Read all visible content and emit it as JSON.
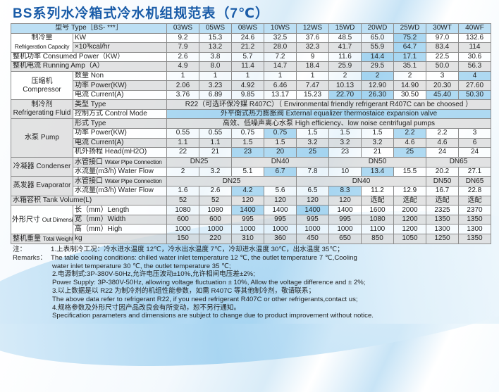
{
  "title": "BS系列水冷箱式冷水机组规范表（7℃）",
  "header": {
    "label": "型号 Type［BS- ***］",
    "models": [
      "03WS",
      "05WS",
      "08WS",
      "10WS",
      "12WS",
      "15WD",
      "20WD",
      "25WD",
      "30WT",
      "40WF"
    ]
  },
  "groups": {
    "capacity": "制冷量",
    "capacity_en": "Refrigeration Capacity",
    "compressor": "压缩机",
    "compressor_en": "Compressor",
    "fluid": "制冷剂",
    "fluid_en": "Refrigerating Fluid",
    "pump": "水泵 Pump",
    "condenser": "冷凝器 Condenser",
    "evaporator": "蒸发器 Evaporator",
    "dimension": "外形尺寸",
    "dimension_en": "Out Dimension",
    "weight": "整机重量",
    "weight_en": "Total Weight"
  },
  "rows": {
    "cap_kw": {
      "label": "KW",
      "values": [
        "9.2",
        "15.3",
        "24.6",
        "32.5",
        "37.6",
        "48.5",
        "65.0",
        "75.2",
        "97.0",
        "132.6"
      ]
    },
    "cap_kcal": {
      "label": "×10³kcal/hr",
      "values": [
        "7.9",
        "13.2",
        "21.2",
        "28.0",
        "32.3",
        "41.7",
        "55.9",
        "64.7",
        "83.4",
        "114"
      ]
    },
    "power": {
      "label": "整机功率 Consumed Power（KW）",
      "values": [
        "2.6",
        "3.8",
        "5.7",
        "7.2",
        "9",
        "11.6",
        "14.4",
        "17.1",
        "22.5",
        "30.6"
      ]
    },
    "amp": {
      "label": "整机电流 Running Amp（A）",
      "values": [
        "4.9",
        "8.0",
        "11.4",
        "14.7",
        "18.4",
        "25.9",
        "29.5",
        "35.1",
        "50.0",
        "56.3"
      ]
    },
    "comp_num": {
      "label": "数量 Non",
      "values": [
        "1",
        "1",
        "1",
        "1",
        "1",
        "2",
        "2",
        "2",
        "3",
        "4"
      ]
    },
    "comp_power": {
      "label": "功率 Power(KW)",
      "values": [
        "2.06",
        "3.23",
        "4.92",
        "6.46",
        "7.47",
        "10.13",
        "12.90",
        "14.90",
        "20.30",
        "27.60"
      ]
    },
    "comp_current": {
      "label": "电流 Current(A)",
      "values": [
        "3.76",
        "6.89",
        "9.85",
        "13.17",
        "15.23",
        "22.70",
        "26.30",
        "30.50",
        "45.40",
        "50.30"
      ]
    },
    "fluid_type": {
      "label": "类型 Type",
      "values": [
        "R22（可选环保冷媒 R407C）（ Environmental friendly refrigerant R407C can be choosed ）"
      ]
    },
    "control": {
      "label": "控制方式 Control Mode",
      "values": [
        "外平衡式热力膨胀阀 External equalizer thermostaice expansion valve"
      ]
    },
    "pump_type": {
      "label": "形式 Type",
      "values": [
        "高效、低噪声离心水泵 High efficiency、low noise centrifugal pumps"
      ]
    },
    "pump_power": {
      "label": "功率 Power(KW)",
      "values": [
        "0.55",
        "0.55",
        "0.75",
        "0.75",
        "1.5",
        "1.5",
        "1.5",
        "2.2",
        "2.2",
        "3"
      ]
    },
    "pump_current": {
      "label": "电流 Current(A)",
      "values": [
        "1.1",
        "1.1",
        "1.5",
        "1.5",
        "3.2",
        "3.2",
        "3.2",
        "4.6",
        "4.6",
        "6"
      ]
    },
    "pump_head": {
      "label": "机外扬程 Head(mH2O)",
      "values": [
        "22",
        "21",
        "23",
        "20",
        "25",
        "23",
        "21",
        "25",
        "24",
        "24"
      ]
    },
    "cond_pipe": {
      "label": "水管接口",
      "label_en": "Water Pipe Connection",
      "values": [
        "DN25",
        "DN40",
        "DN50",
        "DN65"
      ]
    },
    "cond_flow": {
      "label": "水流量(m3/h) Water Flow",
      "values": [
        "2",
        "3.2",
        "5.1",
        "6.7",
        "7.8",
        "10",
        "13.4",
        "15.5",
        "20.2",
        "27.1"
      ]
    },
    "evap_pipe": {
      "label": "水管接口",
      "label_en": "Water Pipe Connection",
      "values": [
        "DN25",
        "DN40",
        "DN50",
        "DN65"
      ]
    },
    "evap_flow": {
      "label": "水流量(m3/h) Water Flow",
      "values": [
        "1.6",
        "2.6",
        "4.2",
        "5.6",
        "6.5",
        "8.3",
        "11.2",
        "12.9",
        "16.7",
        "22.8"
      ]
    },
    "tank": {
      "label": "水箱容积 Tank Volume(L)",
      "values": [
        "52",
        "52",
        "120",
        "120",
        "120",
        "120",
        "选配",
        "选配",
        "选配",
        "选配"
      ]
    },
    "length": {
      "label": "长（mm）Length",
      "values": [
        "1080",
        "1080",
        "1400",
        "1400",
        "1400",
        "1400",
        "1600",
        "2000",
        "2325",
        "2370"
      ]
    },
    "width": {
      "label": "宽（mm）Width",
      "values": [
        "600",
        "600",
        "995",
        "995",
        "995",
        "995",
        "1080",
        "1200",
        "1350",
        "1350"
      ]
    },
    "high": {
      "label": "高（mm）High",
      "values": [
        "1000",
        "1000",
        "1000",
        "1000",
        "1000",
        "1000",
        "1100",
        "1200",
        "1300",
        "1300"
      ]
    },
    "weight": {
      "label": "kg",
      "values": [
        "150",
        "220",
        "310",
        "360",
        "450",
        "650",
        "850",
        "1050",
        "1250",
        "1350"
      ]
    }
  },
  "notes": {
    "prefix_cn": "注：",
    "prefix_en": "Remarks：",
    "lines": [
      "1.上表制冷工况：冷水进水温度 12℃，冷水出水温度 7℃，冷却进水温度 30℃，出水温度 35℃；",
      "The table cooling conditions: chilled water inlet temperature 12 ℃, the outlet temperature 7 ℃,Cooling",
      "water inlet temperature 30 ℃, the outlet temperature 35 ℃;",
      "2.电源制式:3P-380V-50Hz,允许电压波动±10%,允许相间电压差±2%;",
      "Power Supply: 3P-380V-50Hz, allowing voltage fluctuation ± 10%, Allow the voltage difference and ± 2%;",
      "3.以上数据是以 R22 为制冷剂的机组性能参数，如需 R407C 等其他制冷剂，敬请联系；",
      "The above data refer to refrigerant R22, if you need refrigerant R407C or other refrigerants,contact us;",
      "4.规格参数及外形尺寸因产品改良会有所变动，恕不另行通知。",
      "Specification parameters and dimensions are subject to change due to product improvement without notice."
    ]
  }
}
